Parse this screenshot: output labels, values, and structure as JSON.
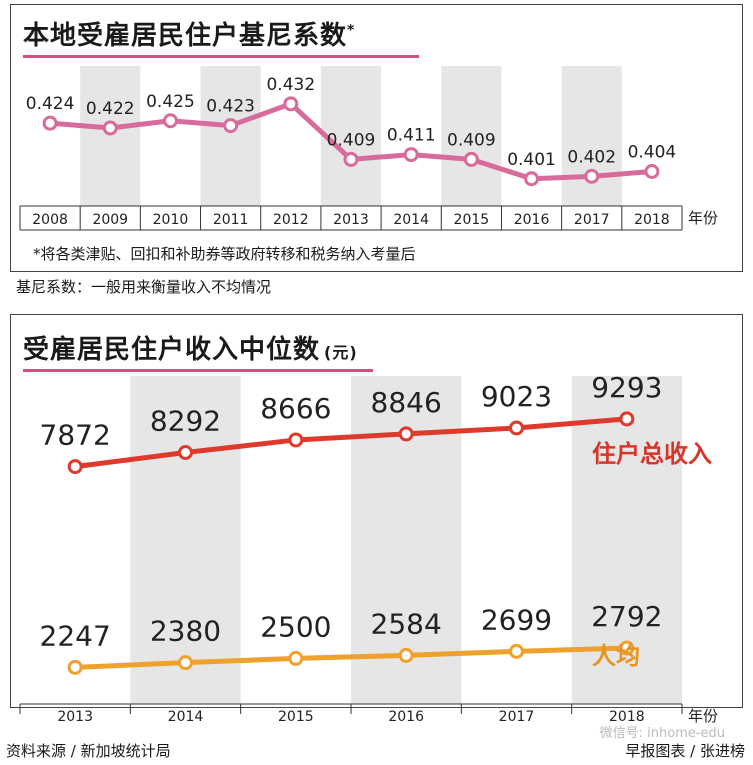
{
  "colors": {
    "gini_line": "#d96a9c",
    "income_line": "#de3a2c",
    "percap_line": "#eea12c",
    "label_red": "#d9342a",
    "label_orange": "#e8931f",
    "band_gray": "#e6e6e6",
    "title_underline": "#d84c86"
  },
  "panel1": {
    "title": "本地受雇居民住户基尼系数",
    "title_asterisk": "*",
    "footnote": "*将各类津贴、回扣和补助券等政府转移和税务纳入考量后",
    "note": "基尼系数：一般用来衡量收入不均情况"
  },
  "panel2": {
    "title": "受雇居民住户收入中位数",
    "unit": "(元)"
  },
  "source": "资料来源 / 新加坡统计局",
  "credit": "早报图表 / 张进榜",
  "watermark": "微信号: inhome-edu",
  "chart_data": [
    {
      "type": "line",
      "title": "本地受雇居民住户基尼系数",
      "x": [
        "2008",
        "2009",
        "2010",
        "2011",
        "2012",
        "2013",
        "2014",
        "2015",
        "2016",
        "2017",
        "2018"
      ],
      "series": [
        {
          "values": [
            0.424,
            0.422,
            0.425,
            0.423,
            0.432,
            0.409,
            0.411,
            0.409,
            0.401,
            0.402,
            0.404
          ],
          "color": "#d96a9c"
        }
      ],
      "xlabel": "年份",
      "ylabel": "",
      "ylim": [
        0.398,
        0.434
      ],
      "grid": false,
      "alternating_bands": true
    },
    {
      "type": "line",
      "title": "受雇居民住户收入中位数",
      "unit": "(元)",
      "x": [
        "2013",
        "2014",
        "2015",
        "2016",
        "2017",
        "2018"
      ],
      "series": [
        {
          "name": "住户总收入",
          "values": [
            7872,
            8292,
            8666,
            8846,
            9023,
            9293
          ],
          "color": "#de3a2c"
        },
        {
          "name": "人均",
          "values": [
            2247,
            2380,
            2500,
            2584,
            2699,
            2792
          ],
          "color": "#eea12c"
        }
      ],
      "xlabel": "年份",
      "ylabel": "",
      "grid": false,
      "alternating_bands": true
    }
  ]
}
